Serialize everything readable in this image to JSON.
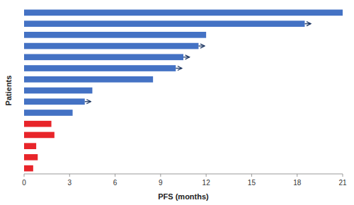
{
  "chart_data": {
    "type": "bar",
    "orientation": "horizontal",
    "values": [
      21.0,
      18.5,
      12.0,
      11.5,
      10.5,
      10.0,
      8.5,
      4.5,
      4.0,
      3.2,
      1.8,
      2.0,
      0.8,
      0.9,
      0.6
    ],
    "colors": [
      "#4472C4",
      "#4472C4",
      "#4472C4",
      "#4472C4",
      "#4472C4",
      "#4472C4",
      "#4472C4",
      "#4472C4",
      "#4472C4",
      "#4472C4",
      "#E8252A",
      "#E8252A",
      "#E8252A",
      "#E8252A",
      "#E8252A"
    ],
    "arrows": [
      true,
      true,
      false,
      true,
      true,
      true,
      false,
      false,
      true,
      false,
      false,
      false,
      false,
      false,
      false
    ],
    "xlim": [
      0,
      21
    ],
    "xticks": [
      0,
      3,
      6,
      9,
      12,
      15,
      18,
      21
    ],
    "xlabel": "PFS (months)",
    "ylabel": "Patients",
    "grid": false,
    "tick_labels": "x"
  }
}
